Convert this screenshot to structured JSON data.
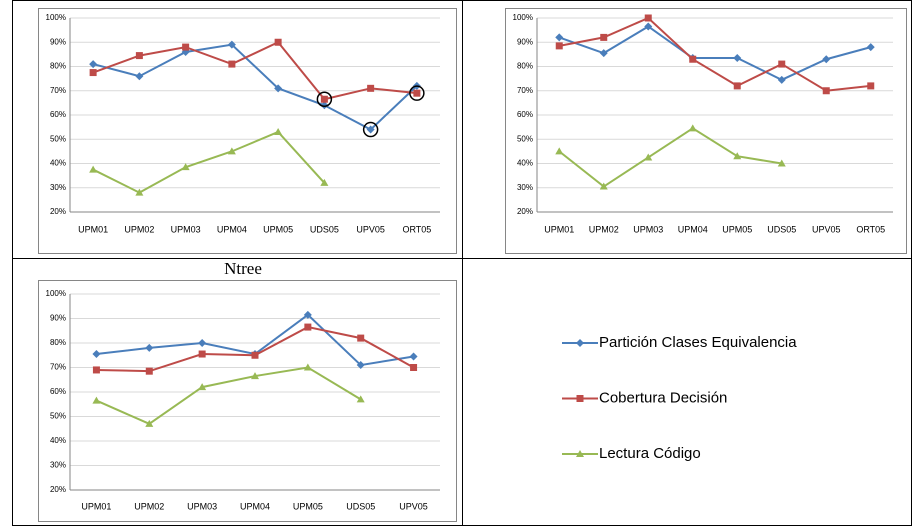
{
  "chart_data": [
    {
      "type": "line",
      "categories": [
        "UPM01",
        "UPM02",
        "UPM03",
        "UPM04",
        "UPM05",
        "UDS05",
        "UPV05",
        "ORT05"
      ],
      "ylim": [
        20,
        100
      ],
      "yticks": [
        {
          "value": 20,
          "label": "20%"
        },
        {
          "value": 30,
          "label": "30%"
        },
        {
          "value": 40,
          "label": "40%"
        },
        {
          "value": 50,
          "label": "50%"
        },
        {
          "value": 60,
          "label": "60%"
        },
        {
          "value": 70,
          "label": "70%"
        },
        {
          "value": 80,
          "label": "80%"
        },
        {
          "value": 90,
          "label": "90%"
        },
        {
          "value": 100,
          "label": "100%"
        }
      ],
      "grid": true,
      "series": [
        {
          "name": "Partición Clases Equivalencia",
          "color": "#4a7ebb",
          "marker": "diamond",
          "values": [
            81,
            76,
            86,
            89,
            71,
            64,
            54,
            72
          ]
        },
        {
          "name": "Cobertura Decisión",
          "color": "#be4b48",
          "marker": "square",
          "values": [
            77.5,
            84.5,
            88,
            81,
            90,
            66.5,
            71,
            69
          ]
        },
        {
          "name": "Lectura Código",
          "color": "#98b954",
          "marker": "triangle",
          "values": [
            37.5,
            28,
            38.5,
            45,
            53,
            32,
            null,
            null
          ]
        }
      ]
    },
    {
      "type": "line",
      "categories": [
        "UPM01",
        "UPM02",
        "UPM03",
        "UPM04",
        "UPM05",
        "UDS05",
        "UPV05",
        "ORT05"
      ],
      "ylim": [
        20,
        100
      ],
      "yticks": [
        {
          "value": 20,
          "label": "20%"
        },
        {
          "value": 30,
          "label": "30%"
        },
        {
          "value": 40,
          "label": "40%"
        },
        {
          "value": 50,
          "label": "50%"
        },
        {
          "value": 60,
          "label": "60%"
        },
        {
          "value": 70,
          "label": "70%"
        },
        {
          "value": 80,
          "label": "80%"
        },
        {
          "value": 90,
          "label": "90%"
        },
        {
          "value": 100,
          "label": "100%"
        }
      ],
      "grid": true,
      "series": [
        {
          "color": "#4a7ebb",
          "marker": "diamond",
          "values": [
            92,
            85.5,
            96.5,
            83.5,
            83.5,
            74.5,
            83,
            88
          ]
        },
        {
          "color": "#be4b48",
          "marker": "square",
          "values": [
            88.5,
            92,
            100,
            83,
            72,
            81,
            70,
            72
          ]
        },
        {
          "color": "#98b954",
          "marker": "triangle",
          "values": [
            45,
            30.5,
            42.5,
            54.5,
            43,
            40,
            null,
            null
          ]
        }
      ]
    },
    {
      "type": "line",
      "title": "Ntree",
      "categories": [
        "UPM01",
        "UPM02",
        "UPM03",
        "UPM04",
        "UPM05",
        "UDS05",
        "UPV05"
      ],
      "ylim": [
        20,
        100
      ],
      "yticks": [
        {
          "value": 20,
          "label": "20%"
        },
        {
          "value": 30,
          "label": "30%"
        },
        {
          "value": 40,
          "label": "40%"
        },
        {
          "value": 50,
          "label": "50%"
        },
        {
          "value": 60,
          "label": "60%"
        },
        {
          "value": 70,
          "label": "70%"
        },
        {
          "value": 80,
          "label": "80%"
        },
        {
          "value": 90,
          "label": "90%"
        },
        {
          "value": 100,
          "label": "100%"
        }
      ],
      "grid": true,
      "series": [
        {
          "color": "#4a7ebb",
          "marker": "diamond",
          "values": [
            75.5,
            78,
            80,
            75.5,
            91.5,
            71,
            74.5
          ]
        },
        {
          "color": "#be4b48",
          "marker": "square",
          "values": [
            69,
            68.5,
            75.5,
            75,
            86.5,
            82,
            70
          ]
        },
        {
          "color": "#98b954",
          "marker": "triangle",
          "values": [
            56.5,
            47,
            62,
            66.5,
            70,
            57,
            null
          ]
        }
      ]
    }
  ]
}
